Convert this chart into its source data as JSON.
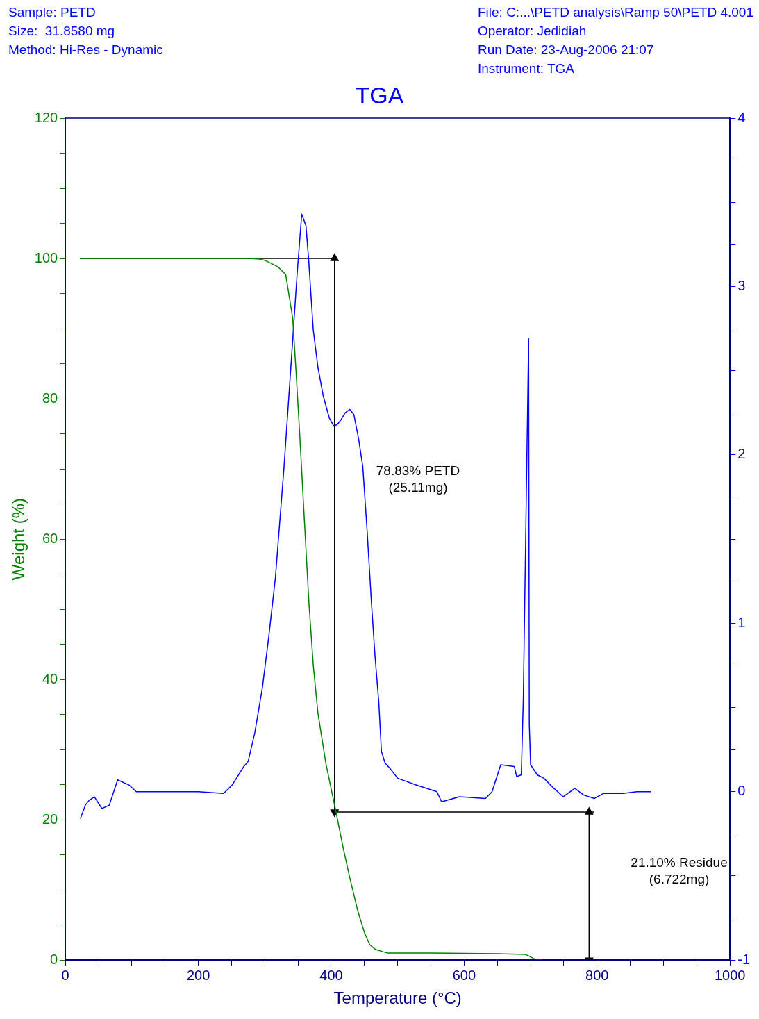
{
  "chart_data": {
    "type": "line",
    "title": "TGA",
    "xlabel": "Temperature (°C)",
    "ylabel": "Weight (%)",
    "xlim": [
      0,
      1000
    ],
    "xticks": [
      0,
      {
        "value": 50,
        "label": null
      },
      200,
      {
        "value": 100,
        "label": null
      },
      {
        "value": 150,
        "label": null
      },
      {
        "value": 250,
        "label": null
      },
      {
        "value": 300,
        "label": null
      },
      {
        "value": 350,
        "label": null
      },
      400,
      {
        "value": 450,
        "label": null
      },
      {
        "value": 500,
        "label": null
      },
      {
        "value": 550,
        "label": null
      },
      600,
      {
        "value": 650,
        "label": null
      },
      {
        "value": 700,
        "label": null
      },
      {
        "value": 750,
        "label": null
      },
      800,
      {
        "value": 850,
        "label": null
      },
      {
        "value": 900,
        "label": null
      },
      {
        "value": 950,
        "label": null
      },
      1000
    ],
    "ylim": [
      0,
      120
    ],
    "yticks": [
      0,
      {
        "value": 5,
        "label": null
      },
      {
        "value": 10,
        "label": null
      },
      {
        "value": 15,
        "label": null
      },
      20,
      {
        "value": 25,
        "label": null
      },
      {
        "value": 30,
        "label": null
      },
      {
        "value": 35,
        "label": null
      },
      40,
      {
        "value": 45,
        "label": null
      },
      {
        "value": 50,
        "label": null
      },
      {
        "value": 55,
        "label": null
      },
      60,
      {
        "value": 65,
        "label": null
      },
      {
        "value": 70,
        "label": null
      },
      {
        "value": 75,
        "label": null
      },
      80,
      {
        "value": 85,
        "label": null
      },
      {
        "value": 90,
        "label": null
      },
      {
        "value": 95,
        "label": null
      },
      100,
      {
        "value": 105,
        "label": null
      },
      {
        "value": 110,
        "label": null
      },
      {
        "value": 115,
        "label": null
      },
      120
    ],
    "y2lim": [
      -1,
      4
    ],
    "y2ticks": [
      -1,
      {
        "value": -0.75,
        "label": null
      },
      {
        "value": -0.5,
        "label": null
      },
      {
        "value": -0.25,
        "label": null
      },
      0,
      {
        "value": 0.25,
        "label": null
      },
      {
        "value": 0.5,
        "label": null
      },
      {
        "value": 0.75,
        "label": null
      },
      1,
      {
        "value": 1.25,
        "label": null
      },
      {
        "value": 1.5,
        "label": null
      },
      {
        "value": 1.75,
        "label": null
      },
      2,
      {
        "value": 2.25,
        "label": null
      },
      {
        "value": 2.5,
        "label": null
      },
      {
        "value": 2.75,
        "label": null
      },
      3,
      {
        "value": 3.25,
        "label": null
      },
      {
        "value": 3.5,
        "label": null
      },
      {
        "value": 3.75,
        "label": null
      },
      4
    ],
    "grid": false,
    "series": [
      {
        "color": "#008000",
        "x": [
          22,
          150,
          276,
          292,
          301,
          320,
          331.5,
          342,
          347,
          353,
          360,
          366.5,
          373,
          380,
          392,
          407,
          418,
          428,
          440,
          450,
          458,
          467,
          485,
          550,
          650,
          692,
          697,
          705,
          718
        ],
        "values": [
          100,
          100,
          100,
          99.9,
          99.7,
          98.8,
          97.7,
          91.5,
          84,
          74.2,
          62,
          50.8,
          42,
          35.2,
          28,
          21.2,
          16,
          11.7,
          7,
          3.9,
          2.2,
          1.5,
          1.0,
          1.0,
          0.9,
          0.8,
          0.6,
          0.2,
          0
        ]
      },
      {
        "color": "#0000ff",
        "axis": "y2",
        "x": [
          22.6,
          30,
          36,
          43.6,
          55,
          66,
          78.6,
          95.7,
          106.6,
          159.5,
          200,
          238,
          251,
          268.5,
          275,
          285,
          296.5,
          306,
          316,
          329,
          342,
          348.6,
          355.6,
          362,
          366,
          373,
          380,
          388,
          397,
          404,
          409,
          415,
          421,
          428,
          434,
          441,
          447.5,
          454,
          460.7,
          466,
          471.6,
          475.5,
          481,
          488,
          500,
          527.6,
          559,
          566,
          593,
          632,
          642,
          655,
          675.5,
          679,
          686,
          689,
          697,
          698,
          700,
          710,
          720,
          735,
          749,
          766.5,
          780,
          796,
          810,
          839,
          860,
          881
        ],
        "values": [
          -0.16,
          -0.08,
          -0.05,
          -0.03,
          -0.1,
          -0.08,
          0.07,
          0.04,
          0,
          0,
          0,
          -0.01,
          0.04,
          0.15,
          0.18,
          0.35,
          0.62,
          0.92,
          1.27,
          1.93,
          2.68,
          3.07,
          3.43,
          3.36,
          3.16,
          2.74,
          2.52,
          2.35,
          2.22,
          2.17,
          2.18,
          2.21,
          2.25,
          2.27,
          2.24,
          2.1,
          1.93,
          1.55,
          1.11,
          0.8,
          0.53,
          0.24,
          0.17,
          0.14,
          0.08,
          0.04,
          0,
          -0.06,
          -0.03,
          -0.04,
          0,
          0.16,
          0.15,
          0.09,
          0.1,
          0.55,
          2.69,
          0.4,
          0.16,
          0.1,
          0.08,
          0.02,
          -0.03,
          0.02,
          -0.02,
          -0.04,
          -0.01,
          -0.01,
          0,
          0
        ]
      },
      {
        "type": "line",
        "color": "#000000",
        "x": [
          22,
          405
        ],
        "values": [
          100,
          100
        ]
      },
      {
        "type": "line",
        "color": "#000000",
        "x": [
          405,
          405
        ],
        "values": [
          100,
          21.1
        ],
        "marker": "triangle"
      },
      {
        "type": "line",
        "color": "#000000",
        "x": [
          405,
          796
        ],
        "values": [
          21.1,
          21.1
        ]
      },
      {
        "type": "line",
        "color": "#000000",
        "x": [
          788,
          788
        ],
        "values": [
          21.1,
          0
        ],
        "marker": "triangle"
      }
    ],
    "annotations": [
      "Sample: PETD\nSize:  31.8580 mg\nMethod: Hi-Res - Dynamic",
      "File: C:...\\PETD analysis\\Ramp 50\\PETD 4.001\nOperator: Jedidiah\nRun Date: 23-Aug-2006 21:07\nInstrument: TGA",
      "78.83% PETD\n(25.11mg)",
      "21.10% Residue\n(6.722mg)"
    ]
  }
}
